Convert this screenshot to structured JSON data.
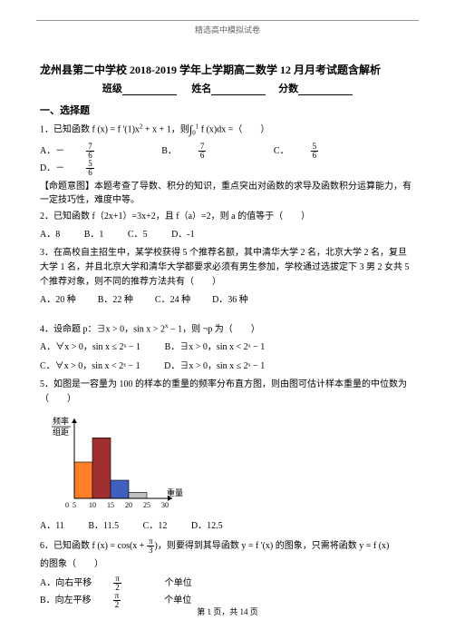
{
  "header": {
    "watermark": "精选高中模拟试卷"
  },
  "title": "龙州县第二中学校 2018-2019 学年上学期高二数学 12 月月考试题含解析",
  "subtitle": {
    "class_label": "班级",
    "name_label": "姓名",
    "score_label": "分数"
  },
  "section1": "一、选择题",
  "q1": {
    "stem_a": "1．已知函数 f (x) = f '(1)x",
    "stem_b": " + x + 1，则",
    "stem_c": " f (x)dx =（　　）",
    "optA_pre": "A．－",
    "optB_pre": "B．",
    "optC_pre": "C．",
    "optD_pre": "D．－",
    "frac76n": "7",
    "frac76d": "6",
    "frac56n": "5",
    "frac56d": "6"
  },
  "q1_note": "【命题意图】本题考查了导数、积分的知识，重点突出对函数的求导及函数积分运算能力，有一定技巧性，难度中等。",
  "q2": {
    "stem": "2．已知函数 f（2x+1）=3x+2，且 f（a）=2，则 a 的值等于（　　）",
    "A": "A．8",
    "B": "B．1",
    "C": "C．5",
    "D": "D．-1"
  },
  "q3": {
    "stem": "3．在高校自主招生中，某学校获得 5 个推荐名额，其中清华大学 2 名，北京大学 2 名，复旦大学 1 名，并且北京大学和清华大学都要求必须有男生参加，学校通过选拔定下 3 男 2 女共 5 个推荐对象，则不同的推荐方法共有（　　）",
    "A": "A．20 种",
    "B": "B．22 种",
    "C": "C．24 种",
    "D": "D．36 种"
  },
  "q4": {
    "stem_a": "4．设命题 p：∃x > 0，sin x > 2",
    "stem_b": " − 1，则 ¬p 为（　　）",
    "A": "A．∀x > 0，sin x ≤ 2ˣ − 1",
    "B": "B．∃x > 0，sin x < 2ˣ − 1",
    "C": "C．∀x > 0，sin x < 2ˣ − 1",
    "D": "D．∃x > 0，sin x ≤ 2ˣ − 1"
  },
  "q5": {
    "stem": "5．如图是一容量为 100 的样本的重量的频率分布直方图，则由图可估计样本重量的中位数为（　　）",
    "ylabel_a": "频率",
    "ylabel_b": "组距",
    "xlabel": "重量",
    "xticks": [
      "5",
      "10",
      "15",
      "20",
      "25",
      "30"
    ],
    "bars": [
      {
        "x": 5,
        "w": 5,
        "h": 0.06,
        "color": "#ff7f27"
      },
      {
        "x": 10,
        "w": 5,
        "h": 0.1,
        "color": "#a03030"
      },
      {
        "x": 15,
        "w": 5,
        "h": 0.03,
        "color": "#4060c0"
      },
      {
        "x": 20,
        "w": 5,
        "h": 0.01,
        "color": "#c0c0c0"
      }
    ],
    "ymax": 0.12,
    "chart_bg": "#ffffff",
    "A": "A．11",
    "B": "B．11.5",
    "C": "C．12",
    "D": "D．12.5"
  },
  "q6": {
    "stem_a": "6．已知函数 f (x) = cos(x + ",
    "stem_b": ")，则要得到其导函数 y = f '(x) 的图象，只需将函数 y = f (x)",
    "stem_c": "的图象（　　）",
    "fracPi3n": "π",
    "fracPi3d": "3",
    "A_pre": "A．向右平移",
    "A_post": "个单位",
    "B_pre": "B．向左平移",
    "B_post": "个单位",
    "fracPi2n": "π",
    "fracPi2d": "2"
  },
  "footer": "第 1 页，共 14 页"
}
